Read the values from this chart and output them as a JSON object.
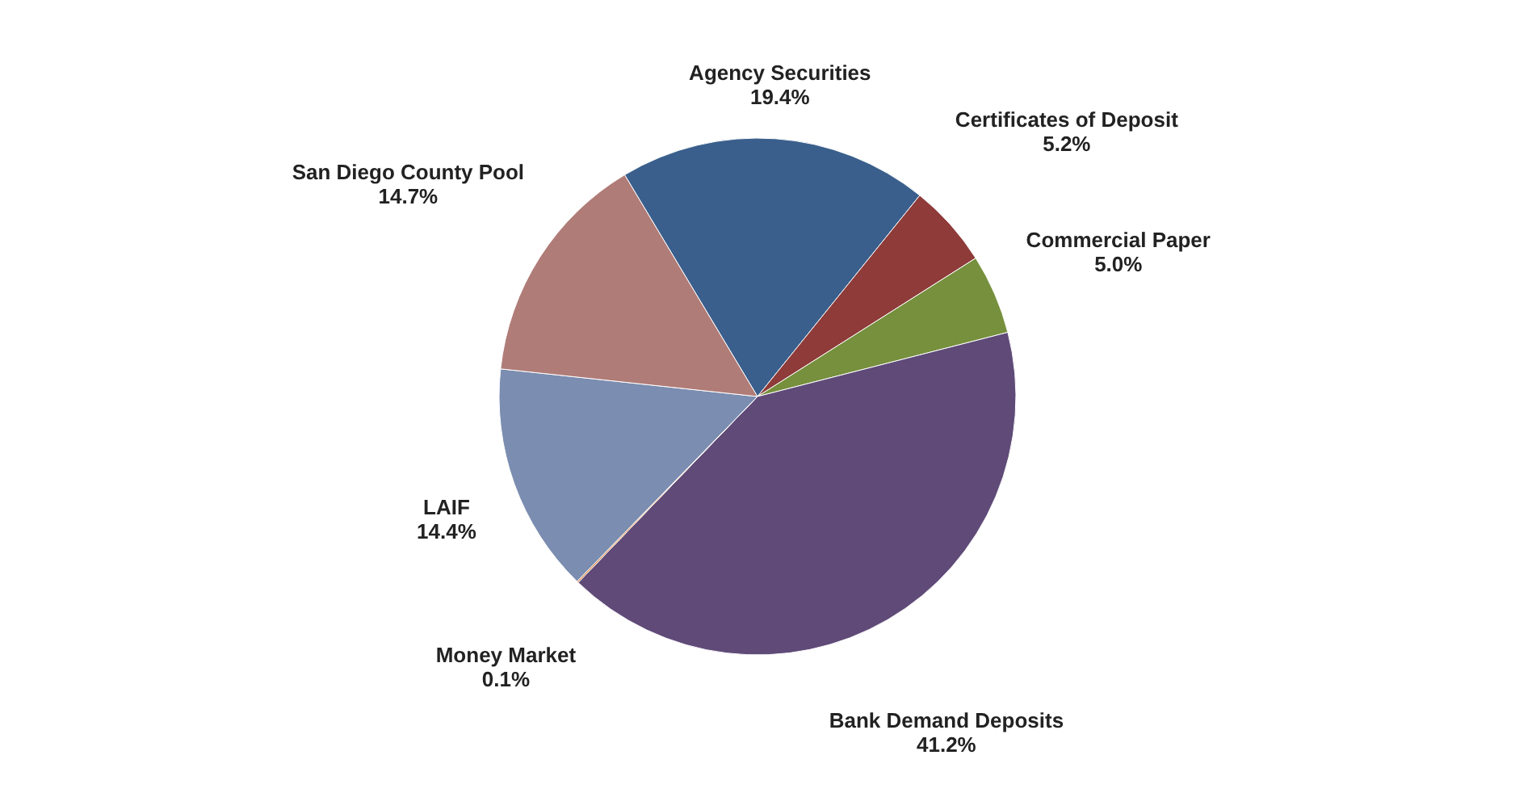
{
  "chart_data": {
    "type": "pie",
    "categories": [
      "Agency Securities",
      "Certificates of Deposit",
      "Commercial Paper",
      "Bank Demand Deposits",
      "Money Market",
      "LAIF",
      "San Diego County Pool"
    ],
    "values": [
      19.4,
      5.2,
      5.0,
      41.2,
      0.1,
      14.4,
      14.7
    ],
    "colors": [
      "#3a5f8c",
      "#8e3b3a",
      "#76903d",
      "#5f4a78",
      "#d7823a",
      "#7b8db0",
      "#b07c78"
    ],
    "value_labels": [
      "19.4%",
      "5.2%",
      "5.0%",
      "41.2%",
      "0.1%",
      "14.4%",
      "14.7%"
    ]
  }
}
